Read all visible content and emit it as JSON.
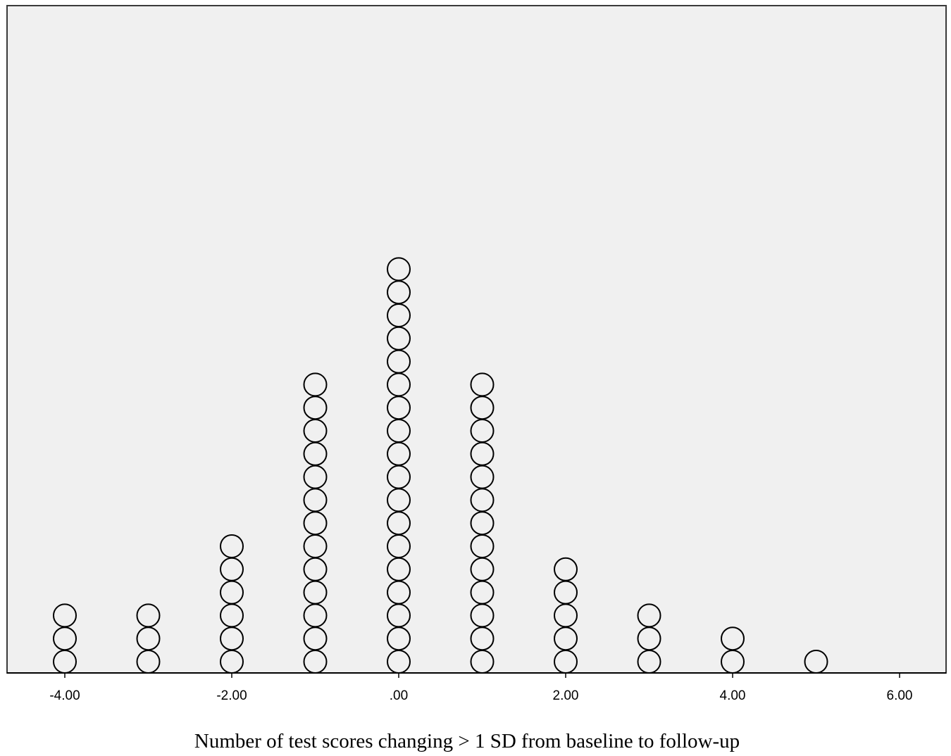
{
  "chart_data": {
    "type": "scatter",
    "subtype": "dot-plot",
    "title": "",
    "xlabel": "Number of test scores changing > 1 SD from baseline to follow-up",
    "ylabel": "",
    "xlim": [
      -4.5,
      6.5
    ],
    "xticks": [
      -4,
      -2,
      0,
      2,
      4,
      6
    ],
    "xtick_labels": [
      "-4.00",
      "-2.00",
      ".00",
      "2.00",
      "4.00",
      "6.00"
    ],
    "grid": false,
    "legend": "none",
    "marker": "open-circle",
    "series": [
      {
        "values": [
          {
            "x": -4,
            "count": 3
          },
          {
            "x": -3,
            "count": 3
          },
          {
            "x": -2,
            "count": 6
          },
          {
            "x": -1,
            "count": 13
          },
          {
            "x": 0,
            "count": 18
          },
          {
            "x": 1,
            "count": 13
          },
          {
            "x": 2,
            "count": 5
          },
          {
            "x": 3,
            "count": 3
          },
          {
            "x": 4,
            "count": 2
          },
          {
            "x": 5,
            "count": 1
          }
        ]
      }
    ],
    "colors": {
      "background": "#f0f0f0",
      "marker_stroke": "#000000"
    }
  }
}
